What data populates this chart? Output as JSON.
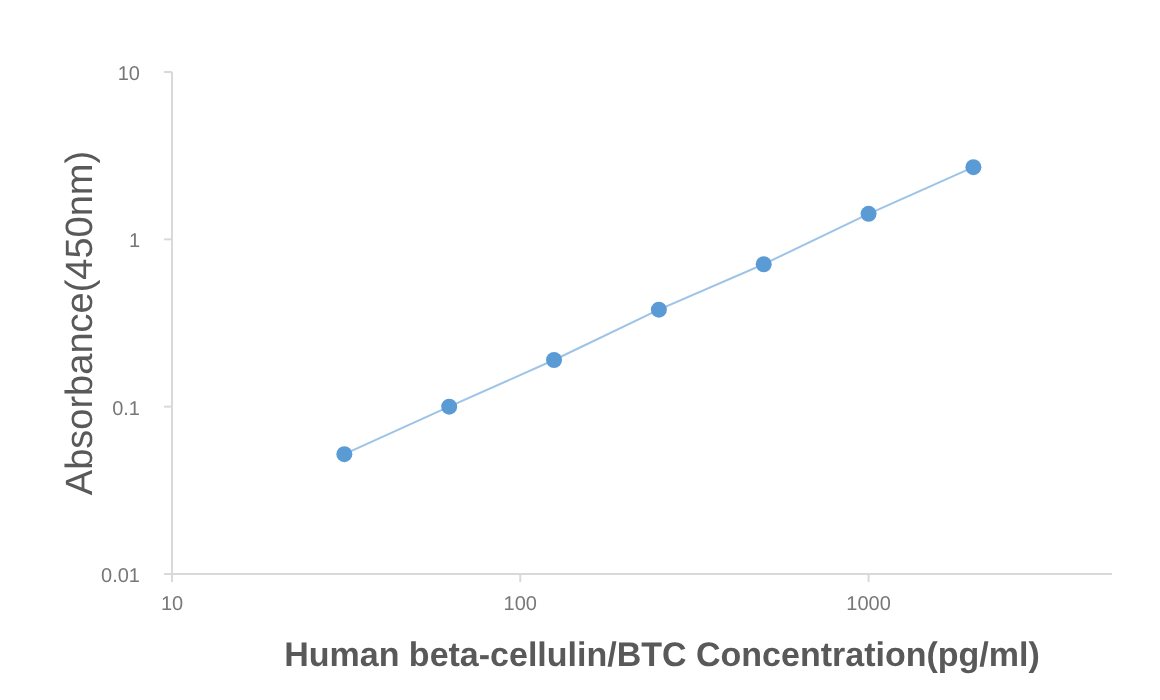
{
  "chart_data": {
    "type": "line",
    "xlabel": "Human beta-cellulin/BTC Concentration(pg/ml)",
    "ylabel": "Absorbance(450nm)",
    "x": [
      31.25,
      62.5,
      125,
      250,
      500,
      1000,
      2000
    ],
    "series": [
      {
        "color": "#5b9bd5",
        "values": [
          0.052,
          0.1,
          0.19,
          0.38,
          0.71,
          1.42,
          2.7
        ]
      }
    ],
    "log": "xy",
    "marker": "circle",
    "line_style": "solid",
    "grid": false,
    "xlim": [
      10,
      5000
    ],
    "ylim": [
      0.01,
      10
    ],
    "xticks": [
      10,
      100,
      1000
    ],
    "yticks": [
      0.01,
      0.1,
      1,
      10
    ]
  }
}
